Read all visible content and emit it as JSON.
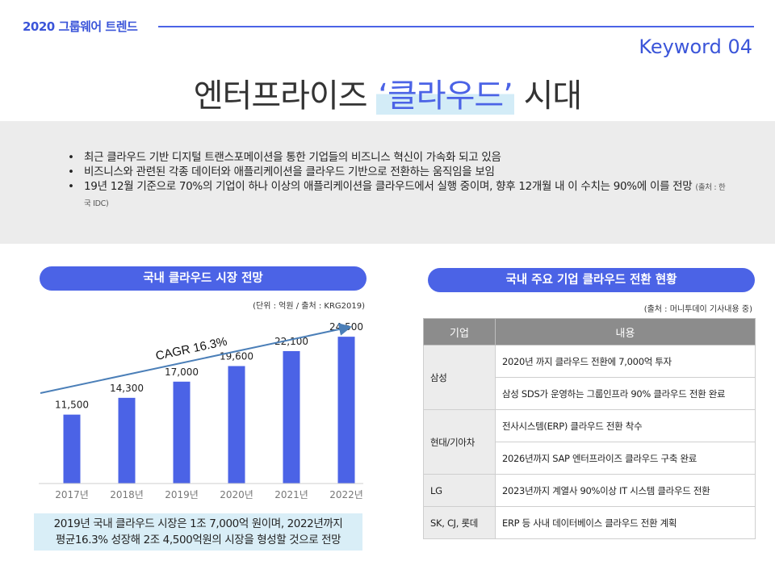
{
  "header": {
    "tag": "2020 그룹웨어 트렌드",
    "keyword": "Keyword 04"
  },
  "title": {
    "before": "엔터프라이즈 ",
    "highlight": "‘클라우드’",
    "after": " 시대"
  },
  "summary": {
    "bullets": [
      "최근 클라우드 기반 디지털 트랜스포메이션을 통한 기업들의 비즈니스 혁신이 가속화 되고 있음",
      "비즈니스와 관련된 각종 데이터와 애플리케이션을 클라우드 기반으로 전환하는 움직임을 보임",
      "19년 12월 기준으로 70%의 기업이 하나 이상의 애플리케이션을 클라우드에서 실행 중이며, 향후 12개월 내 이 수치는 90%에 이를 전망"
    ],
    "source_note": "(출처 : 한국 IDC)"
  },
  "left_panel": {
    "heading": "국내 클라우드 시장 전망",
    "unit_note": "(단위 : 억원 / 출처 : KRG2019)",
    "caption_line1": "2019년 국내 클라우드 시장은 1조 7,000억 원이며, 2022년까지",
    "caption_line2": "평균16.3% 성장해 2조 4,500억원의 시장을 형성할 것으로 전망"
  },
  "chart_data": {
    "type": "bar",
    "categories": [
      "2017년",
      "2018년",
      "2019년",
      "2020년",
      "2021년",
      "2022년"
    ],
    "values": [
      11500,
      14300,
      17000,
      19600,
      22100,
      24500
    ],
    "value_labels": [
      "11,500",
      "14,300",
      "17,000",
      "19,600",
      "22,100",
      "24,500"
    ],
    "annotation": "CAGR 16.3%",
    "ylim": [
      0,
      26000
    ],
    "grid": false,
    "bar_color": "#4b63e6",
    "trend_color": "#4b7fb8"
  },
  "right_panel": {
    "heading": "국내 주요 기업 클라우드 전환 현황",
    "source_note": "(출처 : 머니투데이 기사내용 중)",
    "table": {
      "headers": [
        "기업",
        "내용"
      ],
      "rows": [
        {
          "company": "삼성",
          "items": [
            "2020년 까지 클라우드 전환에 7,000억 투자",
            "삼성 SDS가 운영하는 그룹인프라 90% 클라우드 전환 완료"
          ]
        },
        {
          "company": "현대/기아차",
          "items": [
            "전사시스템(ERP) 클라우드 전환 착수",
            "2026년까지 SAP 엔터프라이즈 클라우드 구축 완료"
          ]
        },
        {
          "company": "LG",
          "items": [
            "2023년까지 계열사 90%이상 IT 시스템 클라우드 전환"
          ]
        },
        {
          "company": "SK, CJ, 롯데",
          "items": [
            "ERP 등 사내 데이터베이스 클라우드 전환 계획"
          ]
        }
      ]
    }
  },
  "colors": {
    "accent": "#4b63e6",
    "highlight_bg": "#d3ecf7",
    "panel_bg": "#ececec"
  }
}
